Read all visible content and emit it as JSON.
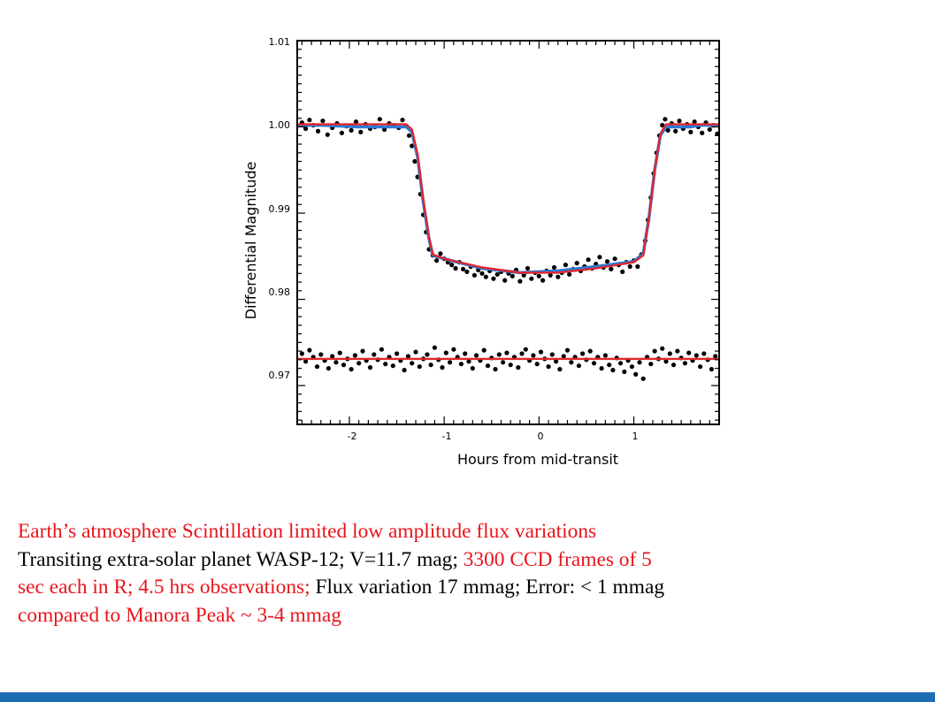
{
  "chart_data": {
    "type": "scatter",
    "xlabel": "Hours from mid-transit",
    "ylabel": "Differential Magnitude",
    "xlim": [
      -2.55,
      1.9
    ],
    "ylim": [
      0.9655,
      1.01
    ],
    "xticks": [
      "-2",
      "-1",
      "0",
      "1"
    ],
    "yticks": [
      "1.01",
      "1.00",
      "0.99",
      "0.98",
      "0.97"
    ],
    "grid": false,
    "series": [
      {
        "kind": "points",
        "color": "#000000",
        "points": [
          [
            -2.5,
            1.0005
          ],
          [
            -2.46,
            0.9998
          ],
          [
            -2.42,
            1.0008
          ],
          [
            -2.38,
            1.0002
          ],
          [
            -2.33,
            0.9995
          ],
          [
            -2.28,
            1.0007
          ],
          [
            -2.23,
            0.9991
          ],
          [
            -2.18,
            0.9999
          ],
          [
            -2.13,
            1.0004
          ],
          [
            -2.08,
            0.9993
          ],
          [
            -2.03,
            1.0001
          ],
          [
            -1.98,
            0.9996
          ],
          [
            -1.93,
            1.0006
          ],
          [
            -1.88,
            0.9994
          ],
          [
            -1.83,
            1.0003
          ],
          [
            -1.78,
            0.9998
          ],
          [
            -1.73,
            1.0
          ],
          [
            -1.68,
            1.0009
          ],
          [
            -1.63,
            0.9997
          ],
          [
            -1.58,
            1.0004
          ],
          [
            -1.53,
            1.0002
          ],
          [
            -1.48,
            0.9999
          ],
          [
            -1.44,
            1.0008
          ],
          [
            -1.4,
            1.0001
          ],
          [
            -1.37,
            0.999
          ],
          [
            -1.34,
            0.9978
          ],
          [
            -1.31,
            0.996
          ],
          [
            -1.28,
            0.9942
          ],
          [
            -1.25,
            0.9922
          ],
          [
            -1.22,
            0.9898
          ],
          [
            -1.19,
            0.9878
          ],
          [
            -1.16,
            0.9858
          ],
          [
            -1.12,
            0.9851
          ],
          [
            -1.08,
            0.9845
          ],
          [
            -1.04,
            0.9853
          ],
          [
            -1.0,
            0.9847
          ],
          [
            -0.96,
            0.9843
          ],
          [
            -0.92,
            0.984
          ],
          [
            -0.88,
            0.9836
          ],
          [
            -0.84,
            0.9843
          ],
          [
            -0.8,
            0.9835
          ],
          [
            -0.76,
            0.9832
          ],
          [
            -0.72,
            0.9838
          ],
          [
            -0.68,
            0.9828
          ],
          [
            -0.64,
            0.9834
          ],
          [
            -0.6,
            0.983
          ],
          [
            -0.56,
            0.9826
          ],
          [
            -0.52,
            0.9833
          ],
          [
            -0.48,
            0.9824
          ],
          [
            -0.44,
            0.9829
          ],
          [
            -0.4,
            0.9832
          ],
          [
            -0.36,
            0.9822
          ],
          [
            -0.32,
            0.983
          ],
          [
            -0.28,
            0.9827
          ],
          [
            -0.24,
            0.9834
          ],
          [
            -0.2,
            0.9821
          ],
          [
            -0.16,
            0.9828
          ],
          [
            -0.12,
            0.9836
          ],
          [
            -0.08,
            0.9824
          ],
          [
            -0.04,
            0.9831
          ],
          [
            0.0,
            0.9827
          ],
          [
            0.04,
            0.9822
          ],
          [
            0.08,
            0.9833
          ],
          [
            0.12,
            0.9828
          ],
          [
            0.16,
            0.9837
          ],
          [
            0.2,
            0.9826
          ],
          [
            0.24,
            0.9831
          ],
          [
            0.28,
            0.984
          ],
          [
            0.32,
            0.9829
          ],
          [
            0.36,
            0.9835
          ],
          [
            0.4,
            0.9842
          ],
          [
            0.44,
            0.9833
          ],
          [
            0.48,
            0.9838
          ],
          [
            0.52,
            0.9846
          ],
          [
            0.56,
            0.9836
          ],
          [
            0.6,
            0.9841
          ],
          [
            0.64,
            0.9849
          ],
          [
            0.68,
            0.9837
          ],
          [
            0.72,
            0.9844
          ],
          [
            0.76,
            0.9835
          ],
          [
            0.8,
            0.9847
          ],
          [
            0.84,
            0.984
          ],
          [
            0.88,
            0.9832
          ],
          [
            0.92,
            0.9843
          ],
          [
            0.96,
            0.9838
          ],
          [
            1.0,
            0.9845
          ],
          [
            1.04,
            0.9838
          ],
          [
            1.08,
            0.9852
          ],
          [
            1.12,
            0.9868
          ],
          [
            1.15,
            0.9892
          ],
          [
            1.18,
            0.9918
          ],
          [
            1.21,
            0.9946
          ],
          [
            1.24,
            0.997
          ],
          [
            1.27,
            0.999
          ],
          [
            1.3,
            1.0002
          ],
          [
            1.33,
            1.0009
          ],
          [
            1.36,
            0.9996
          ],
          [
            1.4,
            1.0004
          ],
          [
            1.44,
            0.9995
          ],
          [
            1.48,
            1.0007
          ],
          [
            1.52,
            0.9998
          ],
          [
            1.56,
            1.0003
          ],
          [
            1.6,
            0.9994
          ],
          [
            1.64,
            1.0006
          ],
          [
            1.68,
            1.0
          ],
          [
            1.72,
            0.9993
          ],
          [
            1.76,
            1.0005
          ],
          [
            1.8,
            0.9997
          ],
          [
            1.84,
            1.0002
          ],
          [
            1.88,
            0.9992
          ],
          [
            -2.5,
            0.9737
          ],
          [
            -2.46,
            0.9728
          ],
          [
            -2.42,
            0.9741
          ],
          [
            -2.38,
            0.9733
          ],
          [
            -2.34,
            0.9722
          ],
          [
            -2.3,
            0.9736
          ],
          [
            -2.26,
            0.9729
          ],
          [
            -2.22,
            0.972
          ],
          [
            -2.18,
            0.9734
          ],
          [
            -2.14,
            0.9727
          ],
          [
            -2.1,
            0.9738
          ],
          [
            -2.06,
            0.9724
          ],
          [
            -2.02,
            0.9731
          ],
          [
            -1.98,
            0.9719
          ],
          [
            -1.94,
            0.9735
          ],
          [
            -1.9,
            0.9726
          ],
          [
            -1.86,
            0.974
          ],
          [
            -1.82,
            0.9729
          ],
          [
            -1.78,
            0.9721
          ],
          [
            -1.74,
            0.9736
          ],
          [
            -1.7,
            0.973
          ],
          [
            -1.66,
            0.9742
          ],
          [
            -1.62,
            0.9725
          ],
          [
            -1.58,
            0.9733
          ],
          [
            -1.54,
            0.9723
          ],
          [
            -1.5,
            0.9737
          ],
          [
            -1.46,
            0.9729
          ],
          [
            -1.42,
            0.9718
          ],
          [
            -1.38,
            0.9734
          ],
          [
            -1.34,
            0.9726
          ],
          [
            -1.3,
            0.9739
          ],
          [
            -1.26,
            0.9722
          ],
          [
            -1.22,
            0.9731
          ],
          [
            -1.18,
            0.9736
          ],
          [
            -1.14,
            0.9724
          ],
          [
            -1.1,
            0.9744
          ],
          [
            -1.06,
            0.973
          ],
          [
            -1.02,
            0.9721
          ],
          [
            -0.98,
            0.9738
          ],
          [
            -0.94,
            0.9727
          ],
          [
            -0.9,
            0.9742
          ],
          [
            -0.86,
            0.9733
          ],
          [
            -0.82,
            0.9725
          ],
          [
            -0.78,
            0.9737
          ],
          [
            -0.74,
            0.9728
          ],
          [
            -0.7,
            0.972
          ],
          [
            -0.66,
            0.9735
          ],
          [
            -0.62,
            0.9729
          ],
          [
            -0.58,
            0.9741
          ],
          [
            -0.54,
            0.9723
          ],
          [
            -0.5,
            0.9732
          ],
          [
            -0.46,
            0.9719
          ],
          [
            -0.42,
            0.9736
          ],
          [
            -0.38,
            0.9727
          ],
          [
            -0.34,
            0.9738
          ],
          [
            -0.3,
            0.9724
          ],
          [
            -0.26,
            0.9733
          ],
          [
            -0.22,
            0.9721
          ],
          [
            -0.18,
            0.9737
          ],
          [
            -0.14,
            0.9742
          ],
          [
            -0.1,
            0.9729
          ],
          [
            -0.06,
            0.9735
          ],
          [
            -0.02,
            0.9725
          ],
          [
            0.02,
            0.9739
          ],
          [
            0.06,
            0.9731
          ],
          [
            0.1,
            0.9722
          ],
          [
            0.14,
            0.9736
          ],
          [
            0.18,
            0.9728
          ],
          [
            0.22,
            0.9719
          ],
          [
            0.26,
            0.9734
          ],
          [
            0.3,
            0.9741
          ],
          [
            0.34,
            0.9727
          ],
          [
            0.38,
            0.9733
          ],
          [
            0.42,
            0.9723
          ],
          [
            0.46,
            0.9737
          ],
          [
            0.5,
            0.973
          ],
          [
            0.54,
            0.974
          ],
          [
            0.58,
            0.9726
          ],
          [
            0.62,
            0.9733
          ],
          [
            0.66,
            0.972
          ],
          [
            0.7,
            0.9735
          ],
          [
            0.74,
            0.9724
          ],
          [
            0.78,
            0.9718
          ],
          [
            0.82,
            0.9732
          ],
          [
            0.86,
            0.9726
          ],
          [
            0.9,
            0.9716
          ],
          [
            0.94,
            0.9729
          ],
          [
            0.98,
            0.9722
          ],
          [
            1.02,
            0.9713
          ],
          [
            1.06,
            0.9727
          ],
          [
            1.1,
            0.9708
          ],
          [
            1.14,
            0.9733
          ],
          [
            1.18,
            0.9725
          ],
          [
            1.22,
            0.974
          ],
          [
            1.26,
            0.9731
          ],
          [
            1.3,
            0.9743
          ],
          [
            1.34,
            0.9728
          ],
          [
            1.38,
            0.9737
          ],
          [
            1.42,
            0.9724
          ],
          [
            1.46,
            0.974
          ],
          [
            1.5,
            0.9732
          ],
          [
            1.54,
            0.9726
          ],
          [
            1.58,
            0.9738
          ],
          [
            1.62,
            0.9729
          ],
          [
            1.66,
            0.9735
          ],
          [
            1.7,
            0.9722
          ],
          [
            1.74,
            0.9737
          ],
          [
            1.78,
            0.973
          ],
          [
            1.82,
            0.9719
          ],
          [
            1.86,
            0.9734
          ]
        ]
      },
      {
        "kind": "line",
        "color": "#2b7bd6",
        "points": [
          [
            -2.55,
            1.0002
          ],
          [
            -2.3,
            1.0002
          ],
          [
            -1.9,
            1.0
          ],
          [
            -1.4,
            1.0
          ],
          [
            -1.34,
            0.9994
          ],
          [
            -1.28,
            0.9965
          ],
          [
            -1.22,
            0.9912
          ],
          [
            -1.16,
            0.987
          ],
          [
            -1.12,
            0.9851
          ],
          [
            -1.0,
            0.9847
          ],
          [
            -0.6,
            0.9836
          ],
          [
            -0.2,
            0.9831
          ],
          [
            0.2,
            0.9833
          ],
          [
            0.6,
            0.9838
          ],
          [
            1.0,
            0.9844
          ],
          [
            1.1,
            0.9853
          ],
          [
            1.16,
            0.9895
          ],
          [
            1.22,
            0.995
          ],
          [
            1.28,
            0.999
          ],
          [
            1.34,
            1.0
          ],
          [
            1.6,
            1.0
          ],
          [
            1.7,
            1.0002
          ],
          [
            1.9,
            1.0002
          ]
        ]
      },
      {
        "kind": "line",
        "color": "#e0262e",
        "points": [
          [
            -2.55,
            1.0003
          ],
          [
            -1.4,
            1.0003
          ],
          [
            -1.34,
            0.9997
          ],
          [
            -1.28,
            0.9968
          ],
          [
            -1.22,
            0.9915
          ],
          [
            -1.16,
            0.9872
          ],
          [
            -1.12,
            0.9852
          ],
          [
            -1.0,
            0.9847
          ],
          [
            -0.6,
            0.9837
          ],
          [
            -0.2,
            0.9831
          ],
          [
            0.2,
            0.9831
          ],
          [
            0.6,
            0.9836
          ],
          [
            1.0,
            0.9843
          ],
          [
            1.1,
            0.9851
          ],
          [
            1.16,
            0.9895
          ],
          [
            1.22,
            0.995
          ],
          [
            1.28,
            0.9992
          ],
          [
            1.34,
            1.0003
          ],
          [
            1.9,
            1.0003
          ]
        ]
      },
      {
        "kind": "line",
        "color": "#e0262e",
        "points": [
          [
            -2.55,
            0.9731
          ],
          [
            1.9,
            0.9731
          ]
        ]
      }
    ]
  },
  "caption": {
    "line1": "Earth’s atmosphere Scintillation limited low amplitude flux variations",
    "line2_black": "Transiting extra-solar planet WASP-12; V=11.7 mag; ",
    "line2_red": "3300 CCD frames of 5",
    "line3_red": "sec each in R; 4.5 hrs observations; ",
    "line3_black": "Flux variation 17 mmag; Error: < 1 mmag",
    "line4": "compared to Manora Peak ~ 3-4 mmag"
  },
  "colors": {
    "caption_red": "#e8151b",
    "footer_bar": "#1d6db3"
  }
}
